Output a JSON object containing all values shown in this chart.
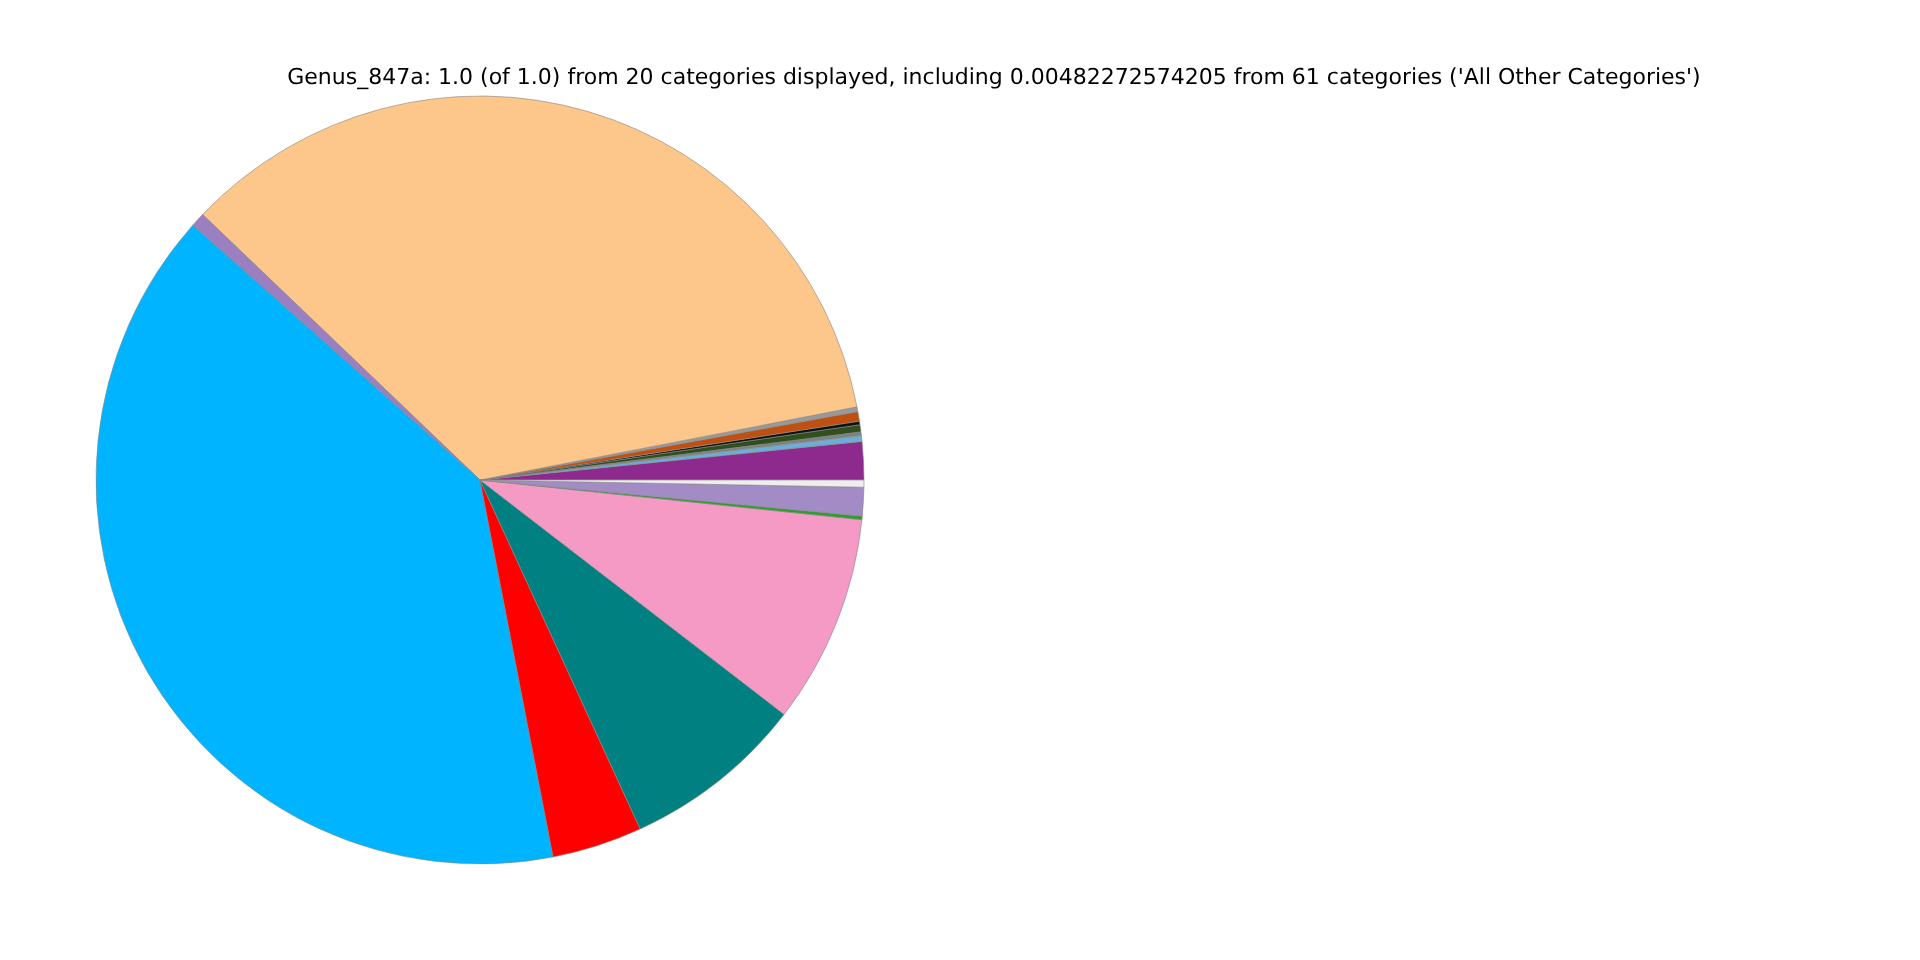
{
  "chart_data": {
    "type": "pie",
    "title": "Genus_847a: 1.0 (of 1.0) from 20 categories displayed, including 0.00482272574205 from 61 categories ('All Other Categories')",
    "categories": [
      null,
      null,
      null,
      null,
      null,
      null,
      null,
      null,
      null,
      null,
      null,
      null,
      null,
      null,
      null,
      null
    ],
    "values": [
      1.6,
      0.25,
      0.15,
      0.3,
      0.15,
      0.4,
      0.2,
      34.8,
      0.6,
      39.6,
      3.8,
      7.7,
      8.8,
      0.15,
      1.2,
      0.3
    ],
    "colors": [
      "#8e2a8e",
      "#6baed6",
      "#808080",
      "#2f4f1f",
      "#111111",
      "#c05010",
      "#999999",
      "#fdc68a",
      "#9b7fc0",
      "#00b4ff",
      "#ff0000",
      "#008080",
      "#f49ac5",
      "#2ca02c",
      "#a38cc6",
      "#eeeeee"
    ]
  }
}
